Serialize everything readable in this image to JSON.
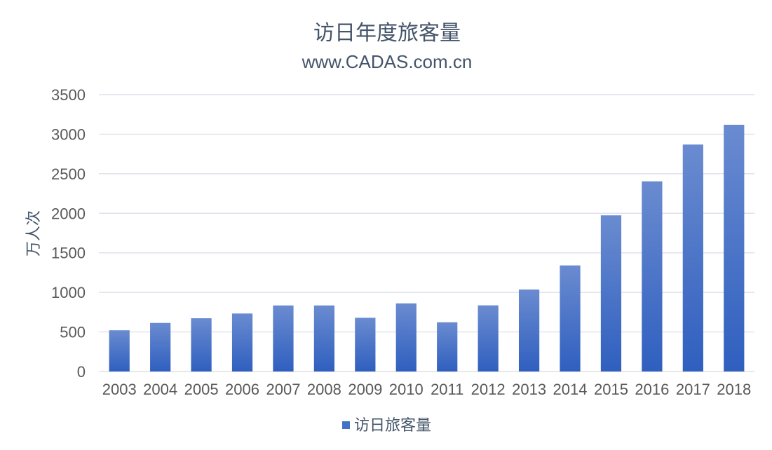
{
  "colors": {
    "bar_top": "#6a8bd0",
    "bar_bottom": "#2f5fbf",
    "legend_swatch": "#4472c4",
    "text": "#44546a",
    "grid": "#d9dce6"
  },
  "chart_data": {
    "type": "bar",
    "title": "访日年度旅客量",
    "subtitle": "www.CADAS.com.cn",
    "xlabel": "",
    "ylabel": "万人次",
    "ylim": [
      0,
      3500
    ],
    "yticks": [
      "0",
      "500",
      "1000",
      "1500",
      "2000",
      "2500",
      "3000",
      "3500"
    ],
    "grid": true,
    "legend_position": "bottom",
    "categories": [
      "2003",
      "2004",
      "2005",
      "2006",
      "2007",
      "2008",
      "2009",
      "2010",
      "2011",
      "2012",
      "2013",
      "2014",
      "2015",
      "2016",
      "2017",
      "2018"
    ],
    "series": [
      {
        "name": "访日旅客量",
        "values": [
          521,
          614,
          673,
          733,
          835,
          835,
          679,
          861,
          622,
          836,
          1036,
          1341,
          1974,
          2404,
          2869,
          3119
        ]
      }
    ]
  }
}
